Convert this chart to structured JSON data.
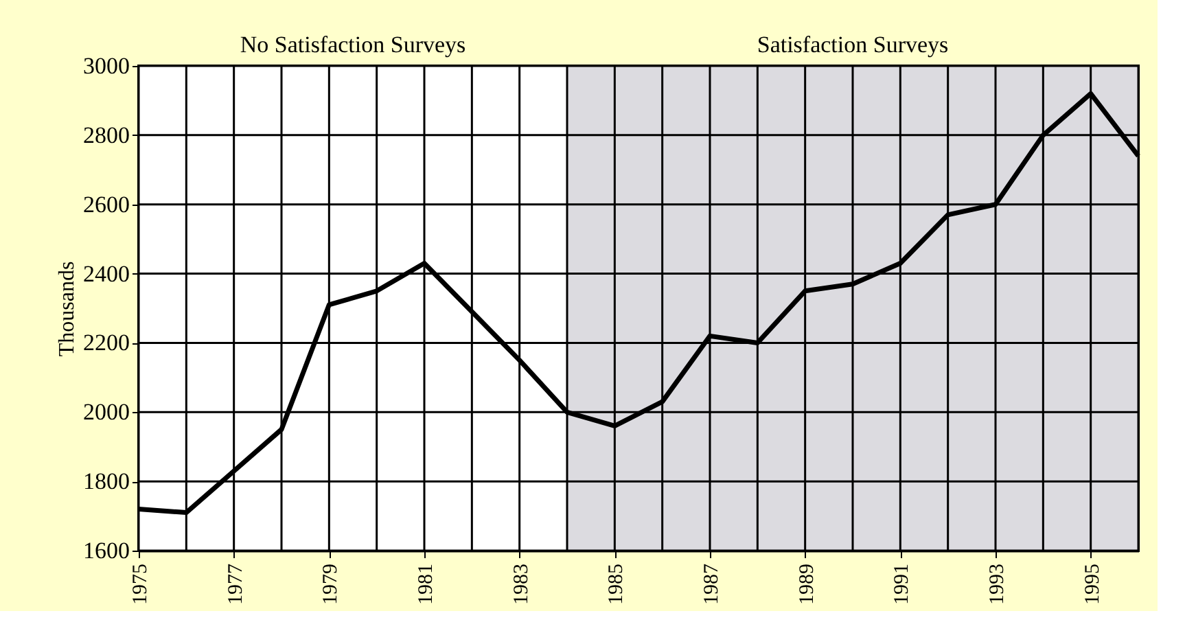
{
  "chart_data": {
    "type": "line",
    "ylabel": "Thousands",
    "x": [
      1975,
      1976,
      1977,
      1978,
      1979,
      1980,
      1981,
      1982,
      1983,
      1984,
      1985,
      1986,
      1987,
      1988,
      1989,
      1990,
      1991,
      1992,
      1993,
      1994,
      1995,
      1996
    ],
    "series": [
      {
        "color": "#000000",
        "values": [
          1720,
          1710,
          1830,
          1950,
          2310,
          2350,
          2430,
          2290,
          2150,
          2000,
          1960,
          2030,
          2220,
          2200,
          2350,
          2370,
          2430,
          2570,
          2600,
          2800,
          2920,
          2740
        ]
      }
    ],
    "xlim": [
      1975,
      1996
    ],
    "xticks": [
      1975,
      {
        "value": 1976,
        "label": null
      },
      1977,
      {
        "value": 1978,
        "label": null
      },
      1979,
      {
        "value": 1980,
        "label": null
      },
      1981,
      {
        "value": 1982,
        "label": null
      },
      1983,
      {
        "value": 1984,
        "label": null
      },
      1985,
      {
        "value": 1986,
        "label": null
      },
      1987,
      {
        "value": 1988,
        "label": null
      },
      1989,
      {
        "value": 1990,
        "label": null
      },
      1991,
      {
        "value": 1992,
        "label": null
      },
      1993,
      {
        "value": 1994,
        "label": null
      },
      1995,
      {
        "value": 1996,
        "label": null
      }
    ],
    "ylim": [
      1600,
      3000
    ],
    "yticks": [
      1600,
      1800,
      2000,
      2200,
      2400,
      2600,
      2800,
      3000
    ],
    "bands": [
      {
        "axis": "x",
        "from": 1975,
        "to": 1984,
        "label": "No Satisfaction Surveys",
        "color": "#ffffff"
      },
      {
        "axis": "x",
        "from": 1984,
        "to": 1996,
        "label": "Satisfaction Surveys",
        "color": "#dcdbe0"
      }
    ],
    "grid": true,
    "marker": "none",
    "line_style": "solid"
  }
}
